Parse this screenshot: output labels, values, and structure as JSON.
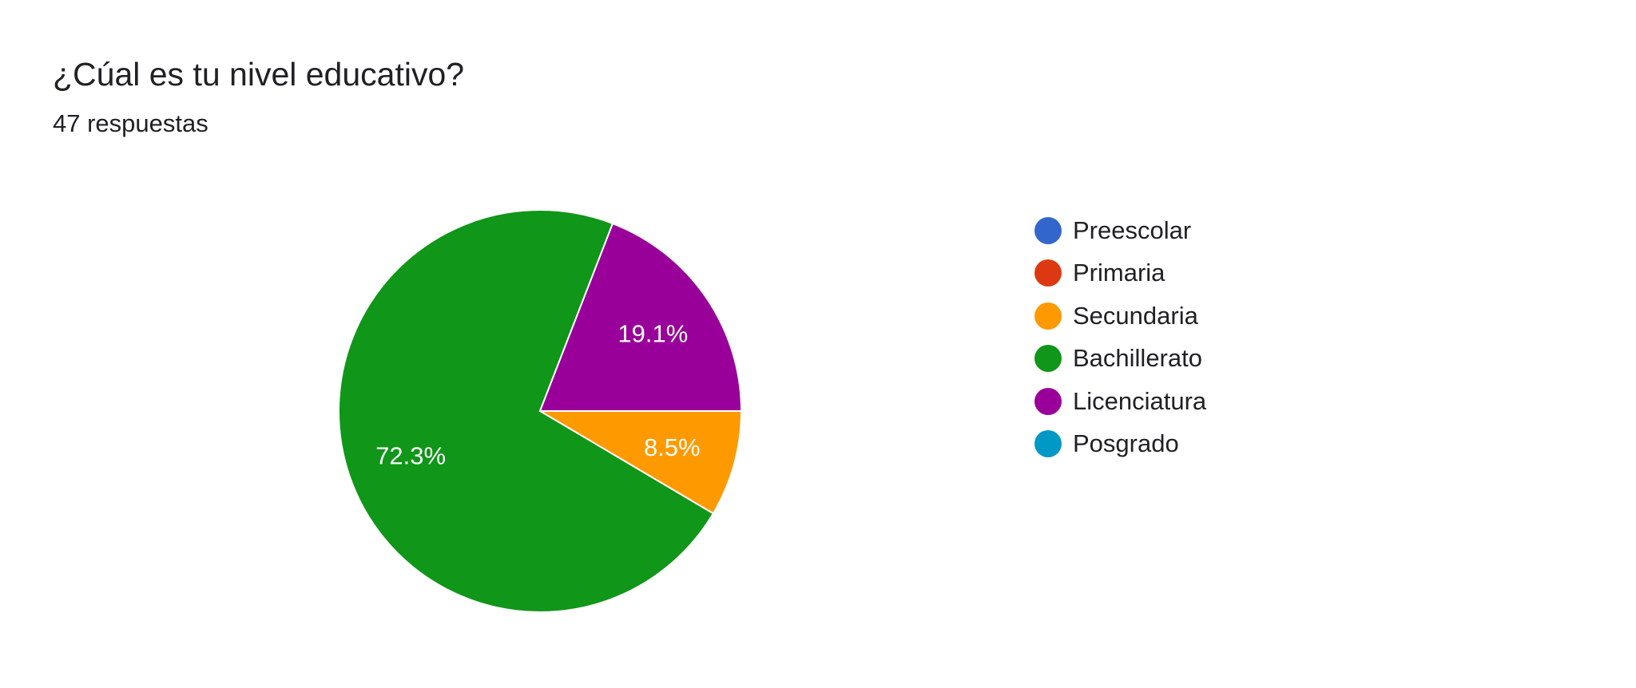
{
  "header": {
    "question": "¿Cúal es tu nivel educativo?",
    "responses": "47 respuestas"
  },
  "chart_data": {
    "type": "pie",
    "title": "¿Cúal es tu nivel educativo?",
    "subtitle": "47 respuestas",
    "legend_position": "right",
    "slices": [
      {
        "label": "Preescolar",
        "value": 0,
        "percent_label": "",
        "color": "#3366cc"
      },
      {
        "label": "Primaria",
        "value": 0,
        "percent_label": "",
        "color": "#dc3912"
      },
      {
        "label": "Secundaria",
        "value": 8.5,
        "percent_label": "8.5%",
        "color": "#ff9900"
      },
      {
        "label": "Bachillerato",
        "value": 72.3,
        "percent_label": "72.3%",
        "color": "#109618"
      },
      {
        "label": "Licenciatura",
        "value": 19.1,
        "percent_label": "19.1%",
        "color": "#990099"
      },
      {
        "label": "Posgrado",
        "value": 0,
        "percent_label": "",
        "color": "#0099c6"
      }
    ]
  }
}
